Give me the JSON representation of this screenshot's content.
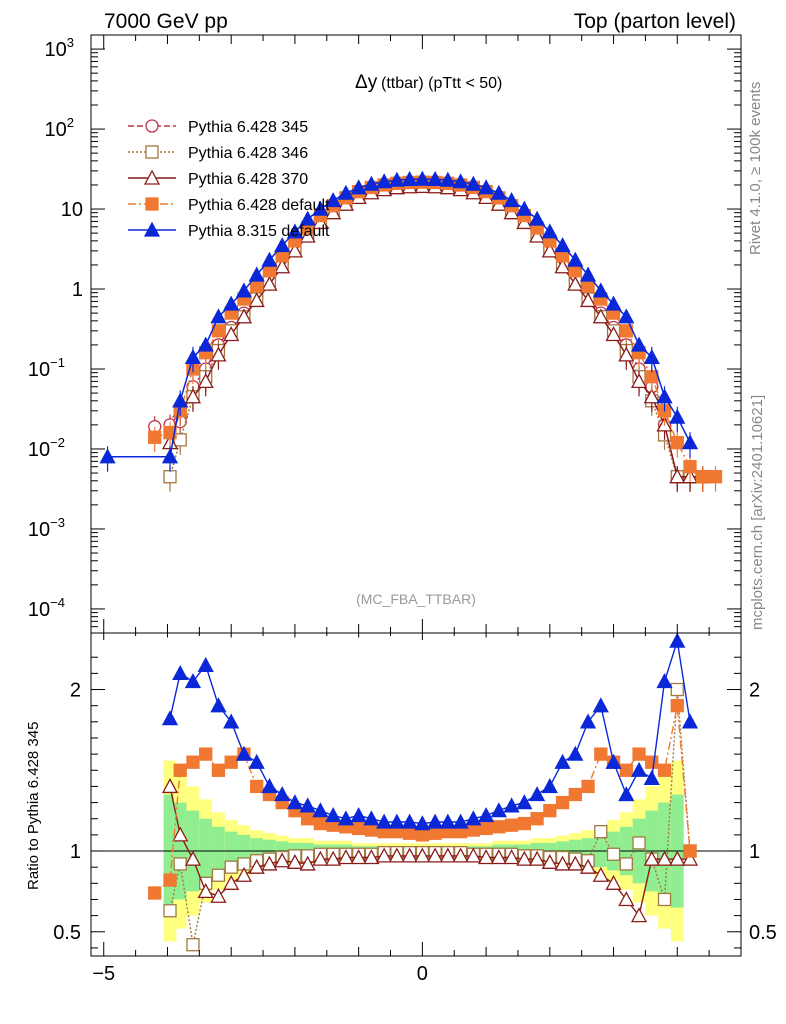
{
  "header": {
    "left": "7000 GeV pp",
    "right": "Top (parton level)"
  },
  "side_labels": {
    "rivet": "Rivet 4.1.0, ≥ 100k events",
    "mcplots": "mcplots.cern.ch [arXiv:2401.10621]"
  },
  "chart_data": {
    "type": "line",
    "title": "Δy (ttbar) (pTtt < 50)",
    "title_main": "Δy",
    "title_sub": "(ttbar) (pTtt < 50)",
    "watermark": "(MC_FBA_TTBAR)",
    "xlabel": "",
    "xlim": [
      -5.2,
      5.0
    ],
    "x_ticks": [
      -5,
      0
    ],
    "x_tick_labels": [
      "−5",
      "0"
    ],
    "main": {
      "yscale": "log",
      "ylim": [
        5e-05,
        1500
      ],
      "y_tick_labels": [
        {
          "v": 1000,
          "base": "10",
          "exp": "3"
        },
        {
          "v": 100,
          "base": "10",
          "exp": "2"
        },
        {
          "v": 10,
          "base": "10",
          "exp": ""
        },
        {
          "v": 1,
          "base": "1",
          "exp": ""
        },
        {
          "v": 0.1,
          "base": "10",
          "exp": "−1"
        },
        {
          "v": 0.01,
          "base": "10",
          "exp": "−2"
        },
        {
          "v": 0.001,
          "base": "10",
          "exp": "−3"
        },
        {
          "v": 0.0001,
          "base": "10",
          "exp": "−4"
        }
      ],
      "x": [
        -4.94,
        -4.2,
        -3.96,
        -3.8,
        -3.6,
        -3.4,
        -3.2,
        -3.0,
        -2.8,
        -2.6,
        -2.4,
        -2.2,
        -2.0,
        -1.8,
        -1.6,
        -1.4,
        -1.2,
        -1.0,
        -0.8,
        -0.6,
        -0.4,
        -0.2,
        0.0,
        0.2,
        0.4,
        0.6,
        0.8,
        1.0,
        1.2,
        1.4,
        1.6,
        1.8,
        2.0,
        2.2,
        2.4,
        2.6,
        2.8,
        3.0,
        3.2,
        3.4,
        3.6,
        3.8,
        4.0,
        4.2,
        4.4,
        4.6
      ],
      "series": [
        {
          "name": "Pythia 6.428 345",
          "color": "#c0304a",
          "marker": "circle-open",
          "dash": "6,3",
          "values": [
            null,
            0.019,
            0.02,
            0.022,
            0.06,
            0.1,
            0.2,
            0.33,
            0.5,
            0.8,
            1.3,
            2.1,
            3.3,
            5.0,
            7.2,
            9.5,
            12.0,
            14.5,
            16.5,
            18.0,
            19.0,
            19.5,
            19.7,
            19.5,
            19.0,
            18.0,
            16.5,
            14.5,
            12.0,
            9.5,
            7.2,
            5.0,
            3.3,
            2.1,
            1.3,
            0.8,
            0.5,
            0.33,
            0.2,
            0.1,
            0.06,
            0.02,
            0.0045,
            0.0045,
            0.0045,
            null
          ]
        },
        {
          "name": "Pythia 6.428 346",
          "color": "#a07840",
          "marker": "square-open",
          "dash": "2,2",
          "values": [
            null,
            null,
            0.0045,
            0.013,
            0.045,
            0.08,
            0.17,
            0.3,
            0.45,
            0.75,
            1.2,
            2.0,
            3.2,
            4.8,
            7.0,
            9.3,
            11.8,
            14.2,
            16.2,
            17.8,
            18.8,
            19.3,
            19.5,
            19.3,
            18.8,
            17.8,
            16.2,
            14.2,
            11.8,
            9.3,
            7.0,
            4.8,
            3.2,
            2.0,
            1.2,
            0.75,
            0.45,
            0.3,
            0.17,
            0.08,
            0.04,
            0.015,
            0.0045,
            0.0045,
            0.0045,
            null
          ]
        },
        {
          "name": "Pythia 6.428 370",
          "color": "#8b1a1a",
          "marker": "triangle-open",
          "dash": "",
          "values": [
            null,
            null,
            0.012,
            0.03,
            0.045,
            0.07,
            0.15,
            0.27,
            0.45,
            0.72,
            1.15,
            1.9,
            3.0,
            4.6,
            6.8,
            9.0,
            11.5,
            14.0,
            16.0,
            17.5,
            18.5,
            19.0,
            19.2,
            19.0,
            18.5,
            17.5,
            16.0,
            14.0,
            11.5,
            9.0,
            6.8,
            4.6,
            3.0,
            1.9,
            1.15,
            0.72,
            0.45,
            0.27,
            0.15,
            0.07,
            0.045,
            0.02,
            0.0045,
            0.0045,
            0.0045,
            null
          ]
        },
        {
          "name": "Pythia 6.428 default",
          "color": "#f07830",
          "marker": "square-filled",
          "dash": "8,3,2,3",
          "values": [
            null,
            0.014,
            0.016,
            0.03,
            0.1,
            0.16,
            0.3,
            0.5,
            0.75,
            1.1,
            1.7,
            2.6,
            4.0,
            5.8,
            8.3,
            11.0,
            13.8,
            16.5,
            18.6,
            20.0,
            21.0,
            21.5,
            21.7,
            21.5,
            21.0,
            20.0,
            18.6,
            16.5,
            13.8,
            11.0,
            8.3,
            5.8,
            4.0,
            2.6,
            1.7,
            1.1,
            0.75,
            0.5,
            0.3,
            0.16,
            0.08,
            0.03,
            0.012,
            0.006,
            0.0045,
            0.0045
          ]
        },
        {
          "name": "Pythia 8.315 default",
          "color": "#0a28d8",
          "marker": "triangle-filled",
          "dash": "",
          "values": [
            0.008,
            null,
            0.008,
            0.04,
            0.14,
            0.2,
            0.45,
            0.65,
            0.95,
            1.5,
            2.3,
            3.5,
            5.2,
            7.5,
            10.0,
            12.8,
            15.8,
            18.5,
            20.5,
            22.0,
            23.0,
            23.5,
            23.7,
            23.5,
            23.0,
            22.0,
            20.5,
            18.5,
            15.8,
            12.8,
            10.0,
            7.5,
            5.2,
            3.5,
            2.3,
            1.5,
            0.95,
            0.65,
            0.45,
            0.2,
            0.14,
            0.045,
            0.025,
            0.012,
            null,
            null
          ]
        }
      ]
    },
    "ratio": {
      "ylabel": "Ratio to Pythia 6.428 345",
      "ylim": [
        0.35,
        2.35
      ],
      "y_ticks": [
        0.5,
        1,
        2
      ],
      "y_tick_labels": [
        "0.5",
        "1",
        "2"
      ],
      "x": [
        -4.2,
        -3.96,
        -3.8,
        -3.6,
        -3.4,
        -3.2,
        -3.0,
        -2.8,
        -2.6,
        -2.4,
        -2.2,
        -2.0,
        -1.8,
        -1.6,
        -1.4,
        -1.2,
        -1.0,
        -0.8,
        -0.6,
        -0.4,
        -0.2,
        0.0,
        0.2,
        0.4,
        0.6,
        0.8,
        1.0,
        1.2,
        1.4,
        1.6,
        1.8,
        2.0,
        2.2,
        2.4,
        2.6,
        2.8,
        3.0,
        3.2,
        3.4,
        3.6,
        3.8,
        4.0,
        4.2
      ],
      "band_green": [
        1.0,
        0.65,
        0.7,
        0.75,
        0.8,
        0.85,
        0.88,
        0.9,
        0.92,
        0.93,
        0.94,
        0.95,
        0.95,
        0.96,
        0.96,
        0.96,
        0.97,
        0.97,
        0.97,
        0.97,
        0.97,
        0.97,
        0.97,
        0.97,
        0.97,
        0.97,
        0.97,
        0.96,
        0.96,
        0.96,
        0.95,
        0.95,
        0.94,
        0.93,
        0.92,
        0.9,
        0.88,
        0.85,
        0.8,
        0.75,
        0.7,
        0.65,
        1.0
      ],
      "series": [
        {
          "name": "Pythia 6.428 346",
          "values": [
            null,
            0.63,
            0.92,
            0.42,
            0.8,
            0.85,
            0.9,
            0.92,
            0.94,
            0.95,
            0.96,
            0.97,
            0.97,
            0.98,
            0.98,
            0.98,
            0.98,
            0.98,
            0.99,
            0.99,
            0.99,
            0.99,
            0.99,
            0.99,
            0.99,
            0.98,
            0.98,
            0.98,
            0.98,
            0.97,
            0.97,
            0.96,
            0.96,
            0.95,
            0.94,
            1.12,
            0.98,
            0.92,
            1.05,
            0.95,
            0.7,
            2.0,
            1.0
          ]
        },
        {
          "name": "Pythia 6.428 370",
          "values": [
            null,
            1.4,
            1.1,
            0.95,
            0.75,
            0.72,
            0.8,
            0.85,
            0.9,
            0.92,
            0.94,
            0.93,
            0.92,
            0.95,
            0.95,
            0.96,
            0.96,
            0.96,
            0.97,
            0.97,
            0.97,
            0.97,
            0.97,
            0.97,
            0.97,
            0.97,
            0.96,
            0.96,
            0.96,
            0.95,
            0.95,
            0.93,
            0.92,
            0.92,
            0.9,
            0.85,
            0.8,
            0.7,
            0.6,
            0.95,
            0.95,
            0.95,
            0.95
          ]
        },
        {
          "name": "Pythia 6.428 default",
          "values": [
            0.74,
            0.82,
            1.5,
            1.55,
            1.6,
            1.5,
            1.55,
            1.6,
            1.4,
            1.35,
            1.3,
            1.25,
            1.2,
            1.17,
            1.16,
            1.15,
            1.14,
            1.13,
            1.12,
            1.12,
            1.11,
            1.1,
            1.11,
            1.12,
            1.12,
            1.13,
            1.14,
            1.15,
            1.16,
            1.17,
            1.2,
            1.25,
            1.3,
            1.35,
            1.4,
            1.6,
            1.55,
            1.5,
            1.6,
            1.55,
            1.5,
            1.9,
            1.0
          ]
        },
        {
          "name": "Pythia 8.315 default",
          "values": [
            null,
            1.82,
            2.1,
            2.05,
            2.15,
            1.9,
            1.8,
            1.6,
            1.55,
            1.4,
            1.35,
            1.3,
            1.28,
            1.25,
            1.22,
            1.2,
            1.22,
            1.2,
            1.18,
            1.18,
            1.18,
            1.17,
            1.18,
            1.18,
            1.18,
            1.2,
            1.22,
            1.25,
            1.28,
            1.3,
            1.35,
            1.4,
            1.55,
            1.6,
            1.8,
            1.9,
            1.55,
            1.35,
            1.5,
            1.45,
            2.05,
            2.3,
            1.8
          ]
        }
      ]
    }
  }
}
